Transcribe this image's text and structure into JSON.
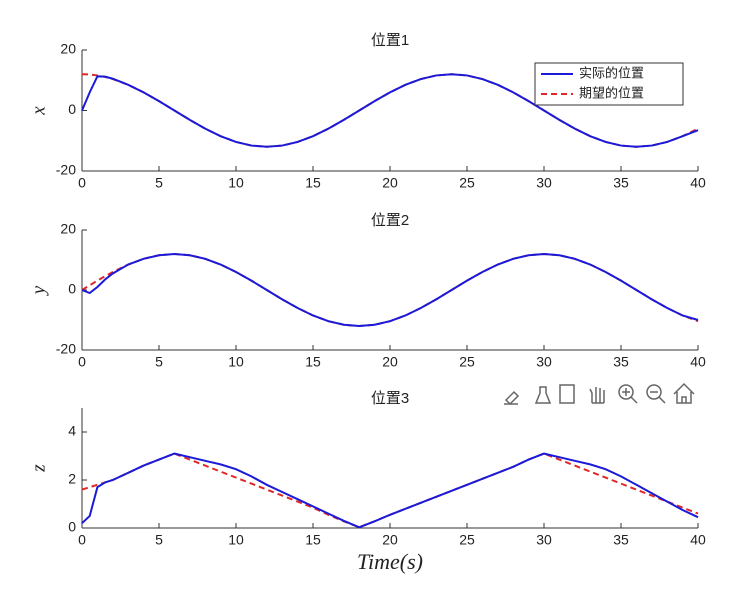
{
  "chart_data": [
    {
      "type": "line",
      "title": "位置1",
      "ylabel": "x",
      "x": [
        0,
        0.5,
        1,
        1.5,
        2,
        3,
        4,
        5,
        6,
        7,
        8,
        9,
        10,
        11,
        12,
        13,
        14,
        15,
        16,
        17,
        18,
        19,
        20,
        21,
        22,
        23,
        24,
        25,
        26,
        27,
        28,
        29,
        30,
        31,
        32,
        33,
        34,
        35,
        36,
        37,
        38,
        39,
        40
      ],
      "series": [
        {
          "name": "实际的位置",
          "color": "#1a1ad8",
          "dash": false,
          "values": [
            0,
            6,
            11.3,
            11.2,
            10.5,
            8.49,
            6,
            3.11,
            0,
            -3.11,
            -6,
            -8.49,
            -10.39,
            -11.59,
            -12,
            -11.59,
            -10.39,
            -8.49,
            -6,
            -3.11,
            0,
            3.11,
            6,
            8.49,
            10.39,
            11.59,
            12,
            11.59,
            10.39,
            8.49,
            6,
            3.11,
            0,
            -3.11,
            -6,
            -8.49,
            -10.39,
            -11.59,
            -12,
            -11.59,
            -10.39,
            -8.49,
            -6.5
          ]
        },
        {
          "name": "期望的位置",
          "color": "#e02828",
          "dash": true,
          "values": [
            12,
            11.9,
            11.59,
            11.09,
            10.39,
            8.49,
            6,
            3.11,
            0,
            -3.11,
            -6,
            -8.49,
            -10.39,
            -11.59,
            -12,
            -11.59,
            -10.39,
            -8.49,
            -6,
            -3.11,
            0,
            3.11,
            6,
            8.49,
            10.39,
            11.59,
            12,
            11.59,
            10.39,
            8.49,
            6,
            3.11,
            0,
            -3.11,
            -6,
            -8.49,
            -10.39,
            -11.59,
            -12,
            -11.59,
            -10.39,
            -8.49,
            -6
          ]
        }
      ],
      "xlim": [
        0,
        40
      ],
      "xticks": [
        0,
        5,
        10,
        15,
        20,
        25,
        30,
        35,
        40
      ],
      "ylim": [
        -20,
        20
      ],
      "yticks": [
        -20,
        0,
        20
      ],
      "legend": "upper right"
    },
    {
      "type": "line",
      "title": "位置2",
      "ylabel": "y",
      "x": [
        0,
        0.5,
        1,
        1.5,
        2,
        3,
        4,
        5,
        6,
        7,
        8,
        9,
        10,
        11,
        12,
        13,
        14,
        15,
        16,
        17,
        18,
        19,
        20,
        21,
        22,
        23,
        24,
        25,
        26,
        27,
        28,
        29,
        30,
        31,
        32,
        33,
        34,
        35,
        36,
        37,
        38,
        39,
        40
      ],
      "series": [
        {
          "color": "#1a1ad8",
          "dash": false,
          "values": [
            0,
            -1,
            1,
            3.5,
            5.5,
            8.49,
            10.39,
            11.59,
            12,
            11.59,
            10.39,
            8.49,
            6,
            3.11,
            0,
            -3.11,
            -6,
            -8.49,
            -10.39,
            -11.59,
            -12,
            -11.59,
            -10.39,
            -8.49,
            -6,
            -3.11,
            0,
            3.11,
            6,
            8.49,
            10.39,
            11.59,
            12,
            11.59,
            10.39,
            8.49,
            6,
            3.11,
            0,
            -3.11,
            -6,
            -8.49,
            -10
          ]
        },
        {
          "color": "#e02828",
          "dash": true,
          "values": [
            0,
            1.57,
            3.11,
            4.59,
            6,
            8.49,
            10.39,
            11.59,
            12,
            11.59,
            10.39,
            8.49,
            6,
            3.11,
            0,
            -3.11,
            -6,
            -8.49,
            -10.39,
            -11.59,
            -12,
            -11.59,
            -10.39,
            -8.49,
            -6,
            -3.11,
            0,
            3.11,
            6,
            8.49,
            10.39,
            11.59,
            12,
            11.59,
            10.39,
            8.49,
            6,
            3.11,
            0,
            -3.11,
            -6,
            -8.49,
            -10.39
          ]
        }
      ],
      "xlim": [
        0,
        40
      ],
      "xticks": [
        0,
        5,
        10,
        15,
        20,
        25,
        30,
        35,
        40
      ],
      "ylim": [
        -20,
        20
      ],
      "yticks": [
        -20,
        0,
        20
      ]
    },
    {
      "type": "line",
      "title": "位置3",
      "ylabel": "z",
      "xlabel": "Time(s)",
      "x": [
        0,
        0.5,
        1,
        1.5,
        2,
        3,
        4,
        5,
        6,
        7,
        8,
        9,
        10,
        11,
        12,
        13,
        14,
        15,
        16,
        17,
        18,
        19,
        20,
        21,
        22,
        23,
        24,
        25,
        26,
        27,
        28,
        29,
        30,
        31,
        32,
        33,
        34,
        35,
        36,
        37,
        38,
        39,
        40
      ],
      "series": [
        {
          "color": "#1a1ad8",
          "dash": false,
          "values": [
            0.2,
            0.5,
            1.7,
            1.9,
            2.0,
            2.3,
            2.6,
            2.85,
            3.1,
            2.95,
            2.8,
            2.65,
            2.45,
            2.15,
            1.8,
            1.5,
            1.2,
            0.9,
            0.6,
            0.3,
            0.03,
            0.28,
            0.55,
            0.8,
            1.05,
            1.3,
            1.55,
            1.8,
            2.05,
            2.3,
            2.55,
            2.85,
            3.1,
            2.95,
            2.8,
            2.65,
            2.45,
            2.15,
            1.8,
            1.45,
            1.1,
            0.75,
            0.45
          ]
        },
        {
          "color": "#e02828",
          "dash": true,
          "values": [
            1.6,
            1.7,
            1.8,
            1.9,
            2.0,
            2.3,
            2.6,
            2.85,
            3.1,
            2.85,
            2.6,
            2.35,
            2.1,
            1.85,
            1.6,
            1.35,
            1.1,
            0.85,
            0.55,
            0.28,
            0.03,
            0.28,
            0.55,
            0.8,
            1.05,
            1.3,
            1.55,
            1.8,
            2.05,
            2.3,
            2.55,
            2.85,
            3.1,
            2.85,
            2.6,
            2.35,
            2.1,
            1.85,
            1.6,
            1.35,
            1.1,
            0.85,
            0.6
          ]
        }
      ],
      "xlim": [
        0,
        40
      ],
      "xticks": [
        0,
        5,
        10,
        15,
        20,
        25,
        30,
        35,
        40
      ],
      "ylim": [
        0,
        5
      ],
      "yticks": [
        0,
        2,
        4
      ]
    }
  ]
}
